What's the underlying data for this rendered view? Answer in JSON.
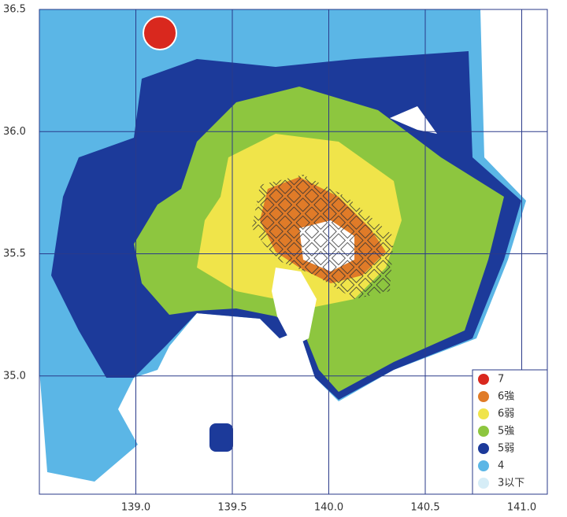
{
  "map": {
    "xticks": [
      {
        "value": 139,
        "label": "139.0"
      },
      139.5,
      {
        "value": 140,
        "label": "140.0"
      },
      140.5,
      {
        "value": 141,
        "label": "141.0"
      }
    ],
    "yticks": [
      36.5,
      {
        "value": 36,
        "label": "36.0"
      },
      35.5,
      {
        "value": 35,
        "label": "35.0"
      }
    ],
    "legend": [
      {
        "label": "7",
        "color": "#d9281e"
      },
      {
        "label": "6強",
        "color": "#e07b28"
      },
      {
        "label": "6弱",
        "color": "#f0e44a"
      },
      {
        "label": "5強",
        "color": "#8dc63f"
      },
      {
        "label": "5弱",
        "color": "#1c3a9a"
      },
      {
        "label": "4",
        "color": "#5bb6e6"
      },
      {
        "label": "3以下",
        "color": "#d6edf7"
      }
    ]
  }
}
